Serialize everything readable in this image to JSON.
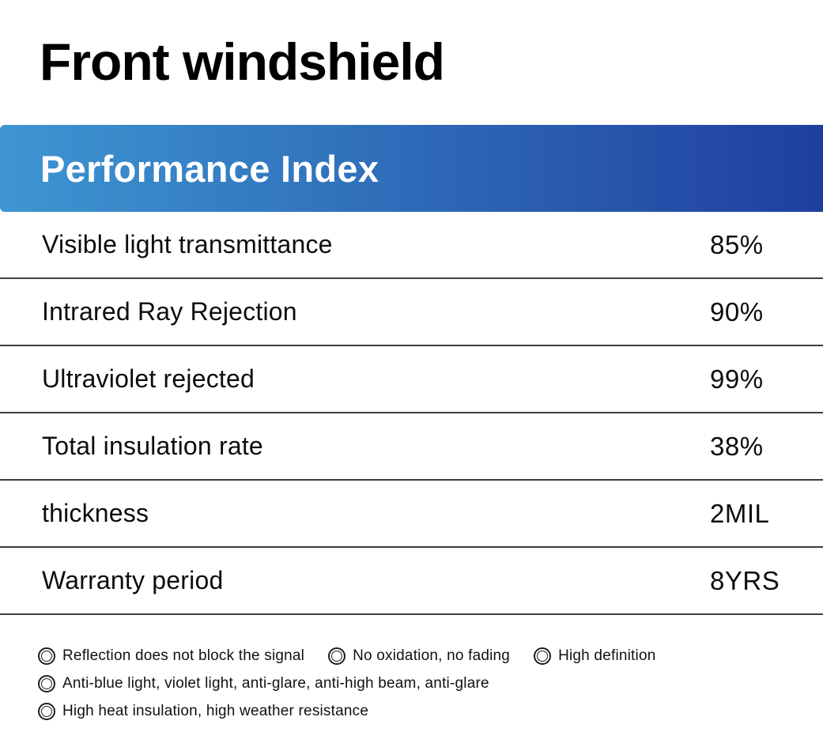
{
  "page": {
    "title": "Front windshield"
  },
  "header": {
    "title": "Performance Index",
    "gradient_start": "#3e96d2",
    "gradient_end": "#1f3f9e",
    "text_color": "#ffffff"
  },
  "table": {
    "divider_color": "#3d3d3d",
    "rows": [
      {
        "label": "Visible light transmittance",
        "value": "85%"
      },
      {
        "label": "Intrared Ray Rejection",
        "value": "90%"
      },
      {
        "label": "Ultraviolet rejected",
        "value": "99%"
      },
      {
        "label": "Total insulation rate",
        "value": "38%"
      },
      {
        "label": "thickness",
        "value": "2MIL"
      },
      {
        "label": "Warranty period",
        "value": "8YRS"
      }
    ]
  },
  "features": {
    "icon": "double-circle-icon",
    "line1": [
      "Reflection does not block the signal",
      "No oxidation, no fading",
      "High definition"
    ],
    "line2": [
      "Anti-blue light, violet light, anti-glare, anti-high beam, anti-glare"
    ],
    "line3": [
      "High heat insulation, high weather resistance"
    ]
  }
}
